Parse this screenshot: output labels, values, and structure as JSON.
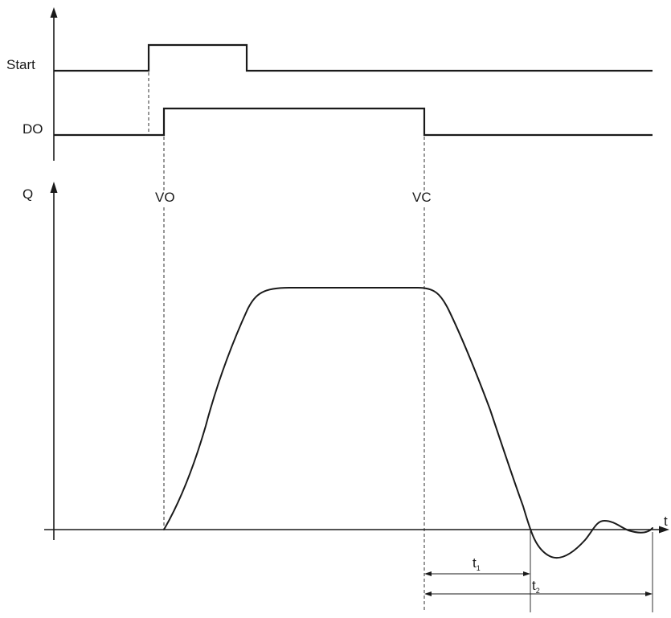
{
  "signals": {
    "start_label": "Start",
    "do_label": "DO"
  },
  "graph": {
    "y_axis_label": "Q",
    "x_axis_label": "t",
    "valve_open_label": "VO",
    "valve_close_label": "VC"
  },
  "intervals": {
    "t1": {
      "main": "t",
      "sub": "1"
    },
    "t2": {
      "main": "t",
      "sub": "2"
    }
  }
}
